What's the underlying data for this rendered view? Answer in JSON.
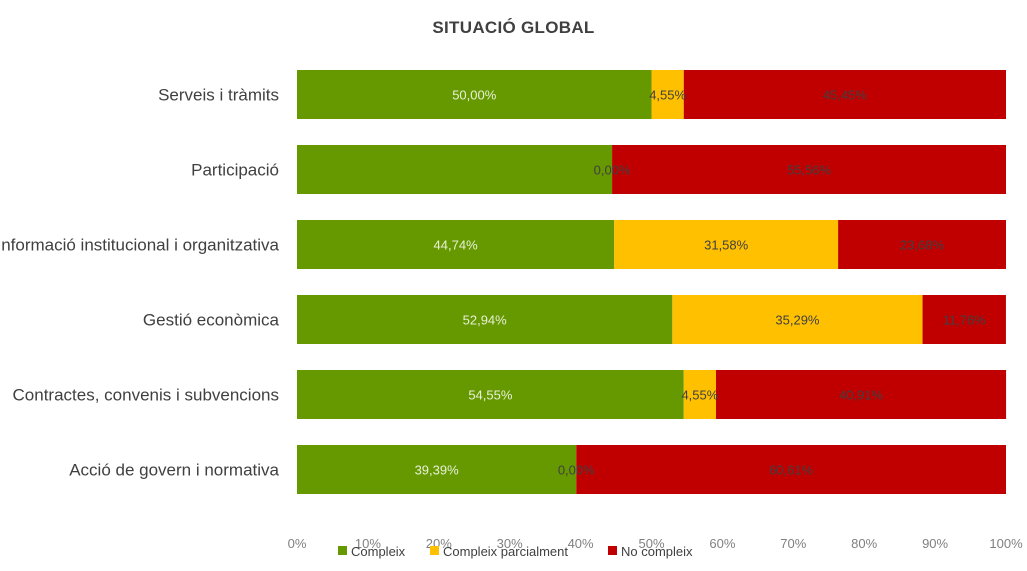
{
  "chart_data": {
    "type": "bar",
    "orientation": "horizontal",
    "stacked": true,
    "title": "SITUACIÓ GLOBAL",
    "categories": [
      "Serveis i tràmits",
      "Participació",
      "Informació institucional i organitzativa",
      "Gestió econòmica",
      "Contractes, convenis i subvencions",
      "Acció de govern i normativa"
    ],
    "series": [
      {
        "name": "Compleix",
        "color": "#669900",
        "values": [
          50.0,
          44.44,
          44.74,
          52.94,
          54.55,
          39.39
        ],
        "labels": [
          "50,00%",
          "",
          "44,74%",
          "52,94%",
          "54,55%",
          "39,39%"
        ]
      },
      {
        "name": "Compleix parcialment",
        "color": "#FFC000",
        "values": [
          4.55,
          0.0,
          31.58,
          35.29,
          4.55,
          0.0
        ],
        "labels": [
          "4,55%",
          "0,00%",
          "31,58%",
          "35,29%",
          "4,55%",
          "0,00%"
        ]
      },
      {
        "name": "No compleix",
        "color": "#C00000",
        "values": [
          45.45,
          55.56,
          23.68,
          11.76,
          40.91,
          60.61
        ],
        "labels": [
          "45,45%",
          "55,56%",
          "23,68%",
          "11,76%",
          "40,91%",
          "60,61%"
        ]
      }
    ],
    "xlim": [
      0,
      100
    ],
    "xticks": [
      "0%",
      "10%",
      "20%",
      "30%",
      "40%",
      "50%",
      "60%",
      "70%",
      "80%",
      "90%",
      "100%"
    ],
    "grid": false,
    "legend_position": "bottom"
  }
}
